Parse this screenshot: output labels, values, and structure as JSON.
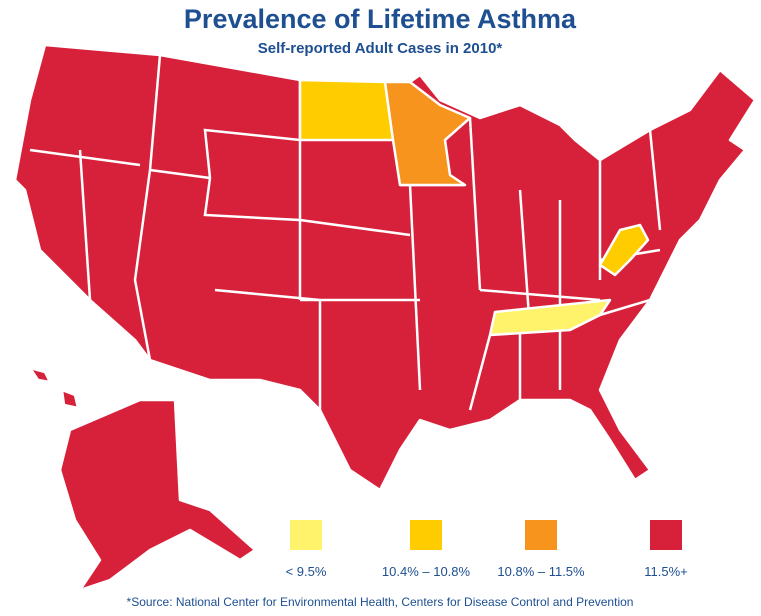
{
  "title": "Prevalence of Lifetime Asthma",
  "subtitle": "Self-reported Adult Cases in 2010*",
  "legend": [
    {
      "label": "< 9.5%",
      "color": "#fff36b"
    },
    {
      "label": "10.4% – 10.8%",
      "color": "#ffcc00"
    },
    {
      "label": "10.8% – 11.5%",
      "color": "#f7941d"
    },
    {
      "label": "11.5%+",
      "color": "#d7213a"
    }
  ],
  "source": "*Source: National Center for Environmental Health, Centers for Disease Control and Prevention"
}
